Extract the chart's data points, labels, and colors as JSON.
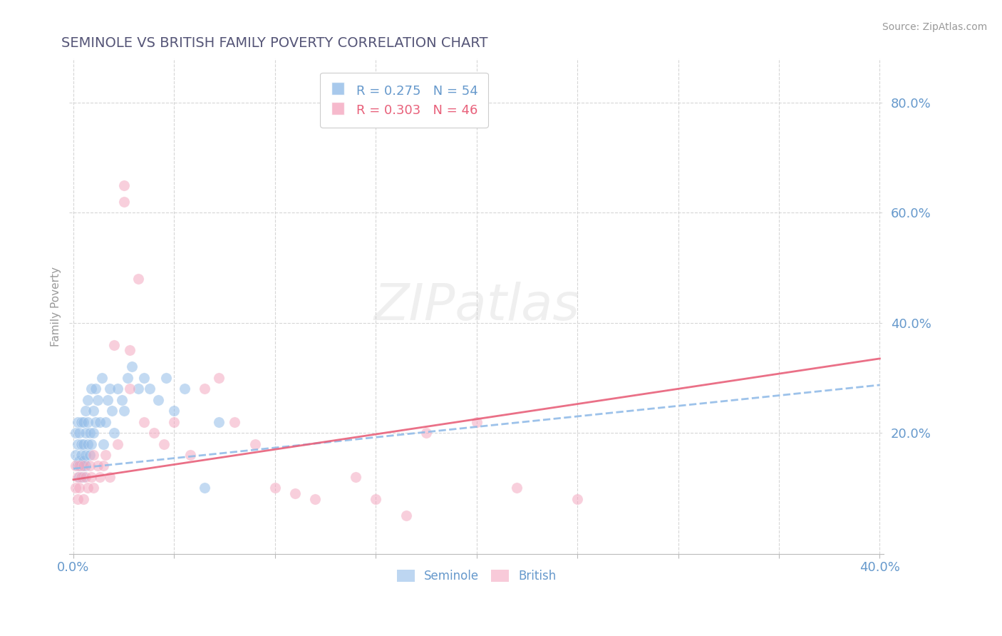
{
  "title": "SEMINOLE VS BRITISH FAMILY POVERTY CORRELATION CHART",
  "source": "Source: ZipAtlas.com",
  "ylabel": "Family Poverty",
  "ytick_values": [
    0.2,
    0.4,
    0.6,
    0.8
  ],
  "ytick_labels": [
    "20.0%",
    "40.0%",
    "60.0%",
    "80.0%"
  ],
  "xlim": [
    -0.002,
    0.402
  ],
  "ylim": [
    -0.02,
    0.88
  ],
  "seminole_R": 0.275,
  "seminole_N": 54,
  "british_R": 0.303,
  "british_N": 46,
  "seminole_color": "#92bce8",
  "british_color": "#f4a8c0",
  "seminole_line_color": "#92bce8",
  "british_line_color": "#e8607a",
  "title_color": "#555577",
  "axis_color": "#6699cc",
  "background_color": "#ffffff",
  "grid_color": "#cccccc",
  "sem_intercept": 0.135,
  "sem_slope": 0.38,
  "brit_intercept": 0.115,
  "brit_slope": 0.55,
  "seminole_x": [
    0.001,
    0.001,
    0.002,
    0.002,
    0.002,
    0.003,
    0.003,
    0.003,
    0.004,
    0.004,
    0.004,
    0.004,
    0.005,
    0.005,
    0.005,
    0.005,
    0.006,
    0.006,
    0.006,
    0.006,
    0.007,
    0.007,
    0.007,
    0.008,
    0.008,
    0.009,
    0.009,
    0.01,
    0.01,
    0.011,
    0.011,
    0.012,
    0.013,
    0.014,
    0.015,
    0.016,
    0.017,
    0.018,
    0.019,
    0.02,
    0.022,
    0.024,
    0.025,
    0.027,
    0.029,
    0.032,
    0.035,
    0.038,
    0.042,
    0.046,
    0.05,
    0.055,
    0.065,
    0.072
  ],
  "seminole_y": [
    0.16,
    0.2,
    0.14,
    0.18,
    0.22,
    0.12,
    0.15,
    0.2,
    0.14,
    0.16,
    0.18,
    0.22,
    0.12,
    0.15,
    0.18,
    0.22,
    0.14,
    0.16,
    0.2,
    0.24,
    0.18,
    0.22,
    0.26,
    0.16,
    0.2,
    0.18,
    0.28,
    0.2,
    0.24,
    0.22,
    0.28,
    0.26,
    0.22,
    0.3,
    0.18,
    0.22,
    0.26,
    0.28,
    0.24,
    0.2,
    0.28,
    0.26,
    0.24,
    0.3,
    0.32,
    0.28,
    0.3,
    0.28,
    0.26,
    0.3,
    0.24,
    0.28,
    0.1,
    0.22
  ],
  "british_x": [
    0.001,
    0.001,
    0.002,
    0.002,
    0.003,
    0.003,
    0.004,
    0.005,
    0.005,
    0.006,
    0.007,
    0.008,
    0.009,
    0.01,
    0.01,
    0.012,
    0.013,
    0.015,
    0.016,
    0.018,
    0.02,
    0.022,
    0.025,
    0.025,
    0.028,
    0.028,
    0.032,
    0.035,
    0.04,
    0.045,
    0.05,
    0.058,
    0.065,
    0.072,
    0.08,
    0.09,
    0.1,
    0.11,
    0.12,
    0.14,
    0.15,
    0.165,
    0.175,
    0.2,
    0.22,
    0.25
  ],
  "british_y": [
    0.1,
    0.14,
    0.08,
    0.12,
    0.1,
    0.14,
    0.12,
    0.08,
    0.14,
    0.12,
    0.1,
    0.14,
    0.12,
    0.1,
    0.16,
    0.14,
    0.12,
    0.14,
    0.16,
    0.12,
    0.36,
    0.18,
    0.65,
    0.62,
    0.35,
    0.28,
    0.48,
    0.22,
    0.2,
    0.18,
    0.22,
    0.16,
    0.28,
    0.3,
    0.22,
    0.18,
    0.1,
    0.09,
    0.08,
    0.12,
    0.08,
    0.05,
    0.2,
    0.22,
    0.1,
    0.08
  ]
}
